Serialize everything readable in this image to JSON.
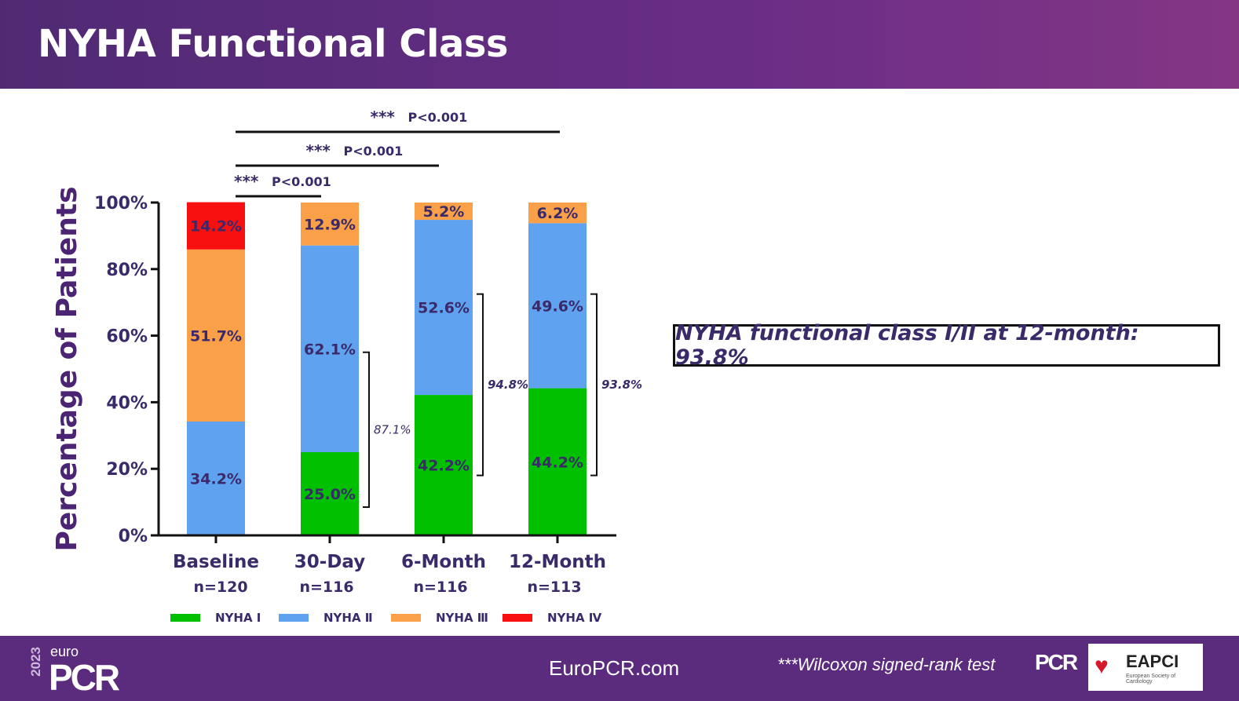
{
  "title": "NYHA Functional Class",
  "callout": "NYHA functional class I/II at 12-month: 93.8%",
  "footer": {
    "brand_year": "2023",
    "brand_euro": "euro",
    "brand_pcr": "PCR",
    "site": "EuroPCR.com",
    "stat_note": "***Wilcoxon signed-rank test",
    "pcr_logo": "PCR",
    "eapci": "EAPCI",
    "eapci_sub": "European Society of Cardiology"
  },
  "chart_data": {
    "type": "bar",
    "stacked": true,
    "ylabel": "Percentage of Patients",
    "ylim": [
      0,
      100
    ],
    "yticks": [
      "0%",
      "20%",
      "40%",
      "60%",
      "80%",
      "100%"
    ],
    "categories": [
      "Baseline",
      "30-Day",
      "6-Month",
      "12-Month"
    ],
    "n_labels": [
      "n=120",
      "n=116",
      "n=116",
      "n=113"
    ],
    "series": [
      {
        "name": "NYHA Ⅰ",
        "color": "#00c000",
        "values": [
          0,
          25.0,
          42.2,
          44.2
        ],
        "labels": [
          "",
          "25.0%",
          "42.2%",
          "44.2%"
        ]
      },
      {
        "name": "NYHA Ⅱ",
        "color": "#5ea2f0",
        "values": [
          34.2,
          62.1,
          52.6,
          49.6
        ],
        "labels": [
          "34.2%",
          "62.1%",
          "52.6%",
          "49.6%"
        ]
      },
      {
        "name": "NYHA Ⅲ",
        "color": "#f9a049",
        "values": [
          51.7,
          12.9,
          5.2,
          6.2
        ],
        "labels": [
          "51.7%",
          "12.9%",
          "5.2%",
          "6.2%"
        ]
      },
      {
        "name": "NYHA Ⅳ",
        "color": "#f81010",
        "values": [
          14.2,
          0,
          0,
          0
        ],
        "labels": [
          "14.2%",
          "",
          "",
          ""
        ]
      }
    ],
    "brackets": [
      {
        "category": "30-Day",
        "label": "87.1%",
        "from": 8.5,
        "to": 55
      },
      {
        "category": "6-Month",
        "label": "94.8%",
        "from": 18,
        "to": 72.5
      },
      {
        "category": "12-Month",
        "label": "93.8%",
        "from": 18,
        "to": 72.5
      }
    ],
    "significance": [
      {
        "from": "Baseline",
        "to": "30-Day",
        "stars": "***",
        "label": "P<0.001"
      },
      {
        "from": "Baseline",
        "to": "6-Month",
        "stars": "***",
        "label": "P<0.001"
      },
      {
        "from": "Baseline",
        "to": "12-Month",
        "stars": "***",
        "label": "P<0.001"
      }
    ]
  }
}
